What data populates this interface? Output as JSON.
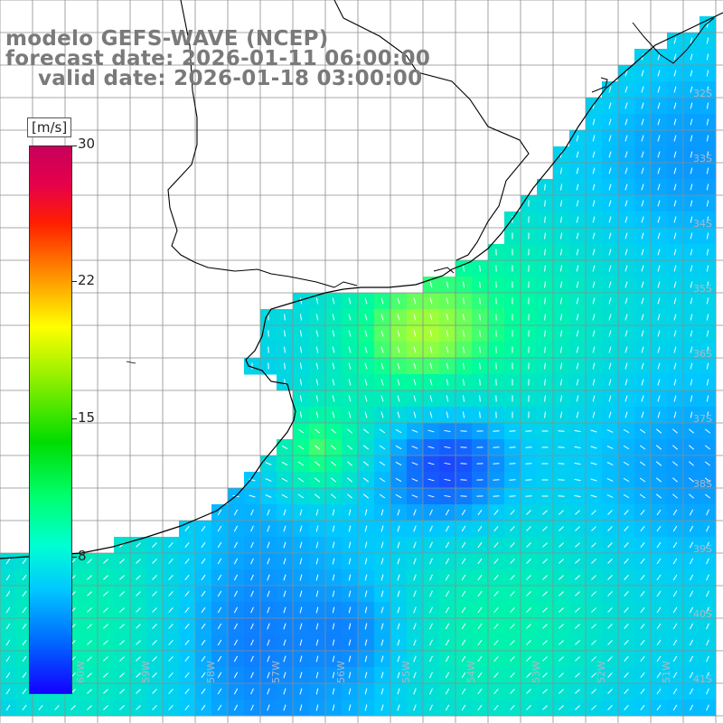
{
  "title": {
    "line1": "modelo GEFS-WAVE (NCEP)",
    "line2": "forecast date: 2026-01-11 06:00:00",
    "line3": "valid date: 2026-01-18 03:00:00"
  },
  "colorbar": {
    "unit": "[m/s]",
    "ticks": [
      "30",
      "22",
      "15",
      "8"
    ]
  },
  "lat_labels": [
    "32S",
    "33S",
    "34S",
    "35S",
    "36S",
    "37S",
    "38S",
    "39S",
    "40S",
    "41S"
  ],
  "lon_labels": [
    "60W",
    "59W",
    "58W",
    "57W",
    "56W",
    "55W",
    "54W",
    "53W",
    "52W",
    "51W"
  ],
  "colors": {
    "low": "#1a3cff",
    "mid": "#00c8ff",
    "high": "#00ff96",
    "peak": "#ffff00",
    "land": "#ffffff",
    "grid": "#8c8c8c",
    "coast": "#000000",
    "arrow": "#ffffff"
  }
}
